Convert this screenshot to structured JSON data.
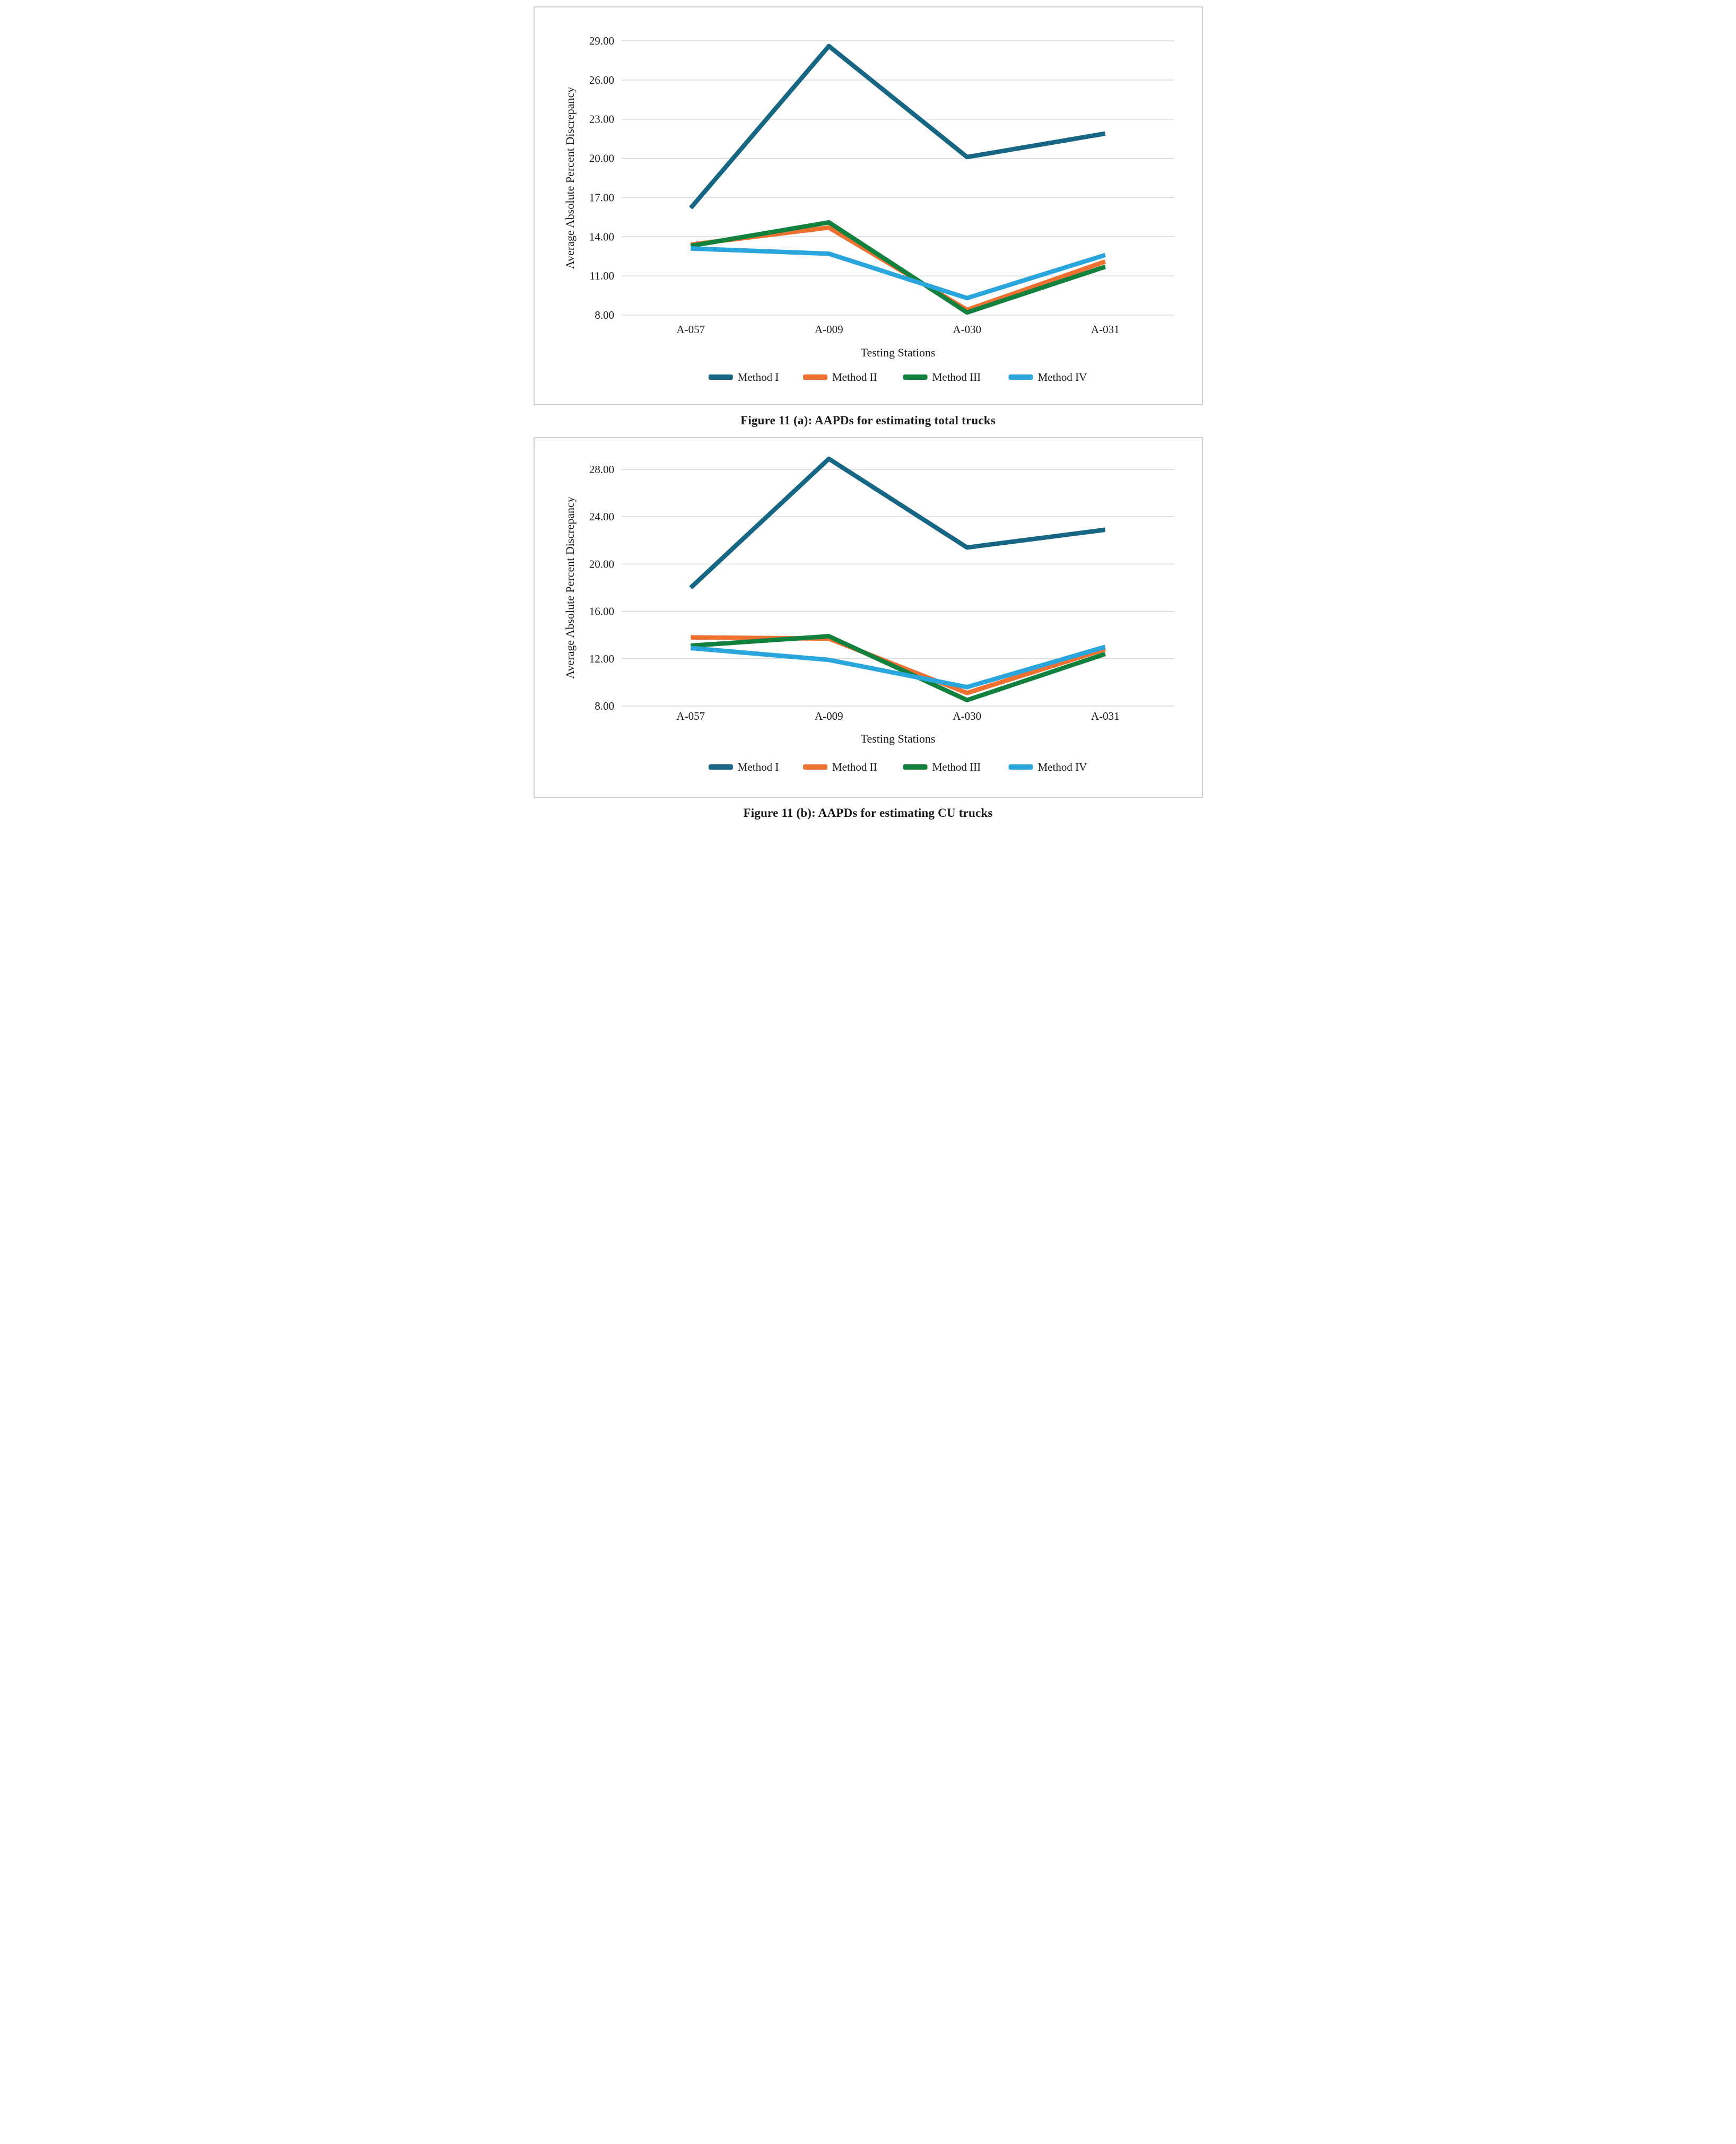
{
  "page": {
    "background": "#ffffff",
    "panel_border_color": "#cfcfcf",
    "gridline_color": "#d9d9d9",
    "text_color": "#1a1a1a"
  },
  "chart_data": [
    {
      "type": "line",
      "title": "Figure 11 (a): AAPDs for estimating total trucks",
      "categories": [
        "A-057",
        "A-009",
        "A-030",
        "A-031"
      ],
      "series": [
        {
          "name": "Method I",
          "color": "#176784",
          "values": [
            16.2,
            28.6,
            20.1,
            21.9
          ]
        },
        {
          "name": "Method II",
          "color": "#EF7132",
          "values": [
            13.4,
            14.7,
            8.4,
            12.1
          ]
        },
        {
          "name": "Method III",
          "color": "#12813E",
          "values": [
            13.3,
            15.1,
            8.2,
            11.7
          ]
        },
        {
          "name": "Method IV",
          "color": "#2BA6DC",
          "values": [
            13.1,
            12.7,
            9.3,
            12.6
          ]
        }
      ],
      "xlabel": "Testing Stations",
      "ylabel": "Average Absolute Percent Discrepancy",
      "ylim": [
        8,
        29
      ],
      "ytick_step": 3,
      "ytick_labels": [
        "8.00",
        "11.00",
        "14.00",
        "17.00",
        "20.00",
        "23.00",
        "26.00",
        "29.00"
      ],
      "grid": true,
      "legend_position": "bottom"
    },
    {
      "type": "line",
      "title": "Figure 11 (b): AAPDs for estimating CU trucks",
      "categories": [
        "A-057",
        "A-009",
        "A-030",
        "A-031"
      ],
      "series": [
        {
          "name": "Method I",
          "color": "#176784",
          "values": [
            18.0,
            28.9,
            21.4,
            22.9
          ]
        },
        {
          "name": "Method II",
          "color": "#EF7132",
          "values": [
            13.8,
            13.7,
            9.1,
            12.8
          ]
        },
        {
          "name": "Method III",
          "color": "#12813E",
          "values": [
            13.1,
            13.9,
            8.5,
            12.4
          ]
        },
        {
          "name": "Method IV",
          "color": "#2BA6DC",
          "values": [
            12.9,
            11.9,
            9.6,
            13.0
          ]
        }
      ],
      "xlabel": "Testing Stations",
      "ylabel": "Average Absolute Percent Discrepancy",
      "ylim": [
        8,
        28
      ],
      "ytick_step": 4,
      "ytick_labels": [
        "8.00",
        "12.00",
        "16.00",
        "20.00",
        "24.00",
        "28.00"
      ],
      "grid": true,
      "legend_position": "bottom"
    }
  ]
}
